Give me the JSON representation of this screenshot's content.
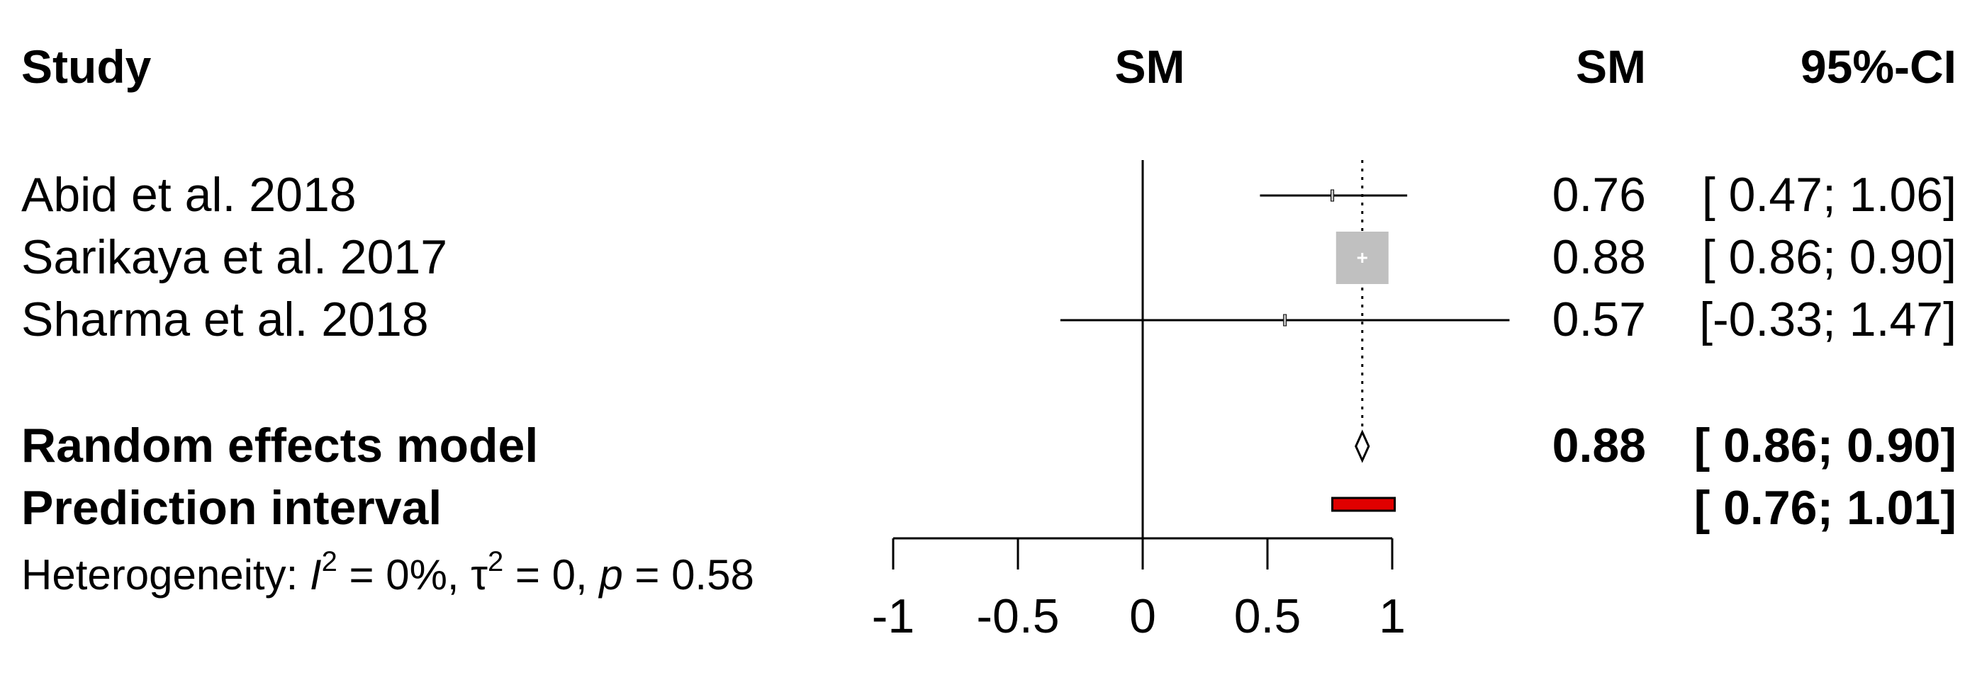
{
  "chart_data": {
    "type": "forest",
    "headers": {
      "study": "Study",
      "plot_label": "SM",
      "estimate": "SM",
      "ci": "95%-CI"
    },
    "studies": [
      {
        "name": "Abid et al. 2018",
        "sm": 0.76,
        "lower": 0.47,
        "upper": 1.06,
        "sm_text": "0.76",
        "ci_text": "[ 0.47; 1.06]",
        "weight": "small"
      },
      {
        "name": "Sarikaya et al. 2017",
        "sm": 0.88,
        "lower": 0.86,
        "upper": 0.9,
        "sm_text": "0.88",
        "ci_text": "[ 0.86; 0.90]",
        "weight": "large"
      },
      {
        "name": "Sharma et al. 2018",
        "sm": 0.57,
        "lower": -0.33,
        "upper": 1.47,
        "sm_text": "0.57",
        "ci_text": "[-0.33; 1.47]",
        "weight": "small"
      }
    ],
    "random_effects": {
      "label": "Random effects model",
      "sm": 0.88,
      "lower": 0.86,
      "upper": 0.9,
      "sm_text": "0.88",
      "ci_text": "[ 0.86; 0.90]"
    },
    "prediction_interval": {
      "label": "Prediction interval",
      "lower": 0.76,
      "upper": 1.01,
      "ci_text": "[ 0.76; 1.01]",
      "color": "#e00000"
    },
    "heterogeneity": {
      "prefix": "Heterogeneity: ",
      "i2_symbol": "I",
      "i2_value": " = 0%, ",
      "tau_symbol": "τ",
      "tau_value": " = 0, ",
      "p_symbol": "p",
      "p_value": " = 0.58",
      "superscript": "2"
    },
    "x_axis": {
      "ticks": [
        -1,
        -0.5,
        0,
        0.5,
        1
      ],
      "tick_labels": [
        "-1",
        "-0.5",
        "0",
        "0.5",
        "1"
      ],
      "range": [
        -1,
        1
      ]
    },
    "reference_line": 0,
    "summary_line": 0.88,
    "square_color": "#c0c0c0"
  }
}
